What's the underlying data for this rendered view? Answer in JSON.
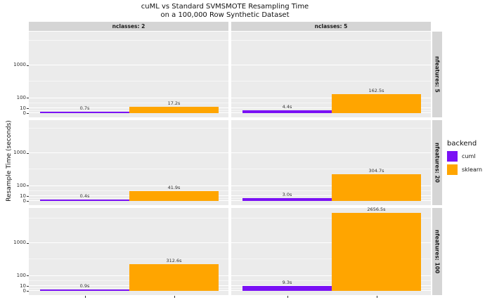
{
  "title": {
    "line1": "cuML vs Standard SVMSMOTE Resampling Time",
    "line2": "on a 100,000 Row Synthetic Dataset"
  },
  "axes": {
    "ylabel": "Resample Time (seconds)",
    "y_tick_labels": [
      "0",
      "10",
      "100",
      "1000"
    ]
  },
  "facets": {
    "col_labels": [
      "nclasses: 2",
      "nclasses: 5"
    ],
    "row_labels": [
      "nfeatures: 5",
      "nfeatures: 20",
      "nfeatures: 100"
    ]
  },
  "legend": {
    "title": "backend",
    "items": [
      {
        "label": "cuml",
        "color": "#7a11f5"
      },
      {
        "label": "sklearn",
        "color": "#ffa500"
      }
    ]
  },
  "colors": {
    "panel_bg": "#ebebeb",
    "strip_bg": "#d5d5d5",
    "grid_major": "#ffffff",
    "cuml": "#7a11f5",
    "sklearn": "#ffa500"
  },
  "chart_data": {
    "type": "bar",
    "title": "cuML vs Standard SVMSMOTE Resampling Time on a 100,000 Row Synthetic Dataset",
    "ylabel": "Resample Time (seconds)",
    "x": "backend",
    "categories": [
      "cuml",
      "sklearn"
    ],
    "y_scale": "sqrt",
    "ylim": [
      0,
      2900
    ],
    "y_major_breaks": [
      0,
      10,
      100,
      1000
    ],
    "y_minor_breaks": [
      2.5,
      43,
      433,
      2300
    ],
    "facet_grid": {
      "rows_var": "nfeatures",
      "rows": [
        5,
        20,
        100
      ],
      "cols_var": "nclasses",
      "cols": [
        2,
        5
      ]
    },
    "legend_position": "right",
    "panels": [
      {
        "nclasses": 2,
        "nfeatures": 5,
        "values": {
          "cuml": 0.7,
          "sklearn": 17.2
        },
        "labels": {
          "cuml": "0.7s",
          "sklearn": "17.2s"
        }
      },
      {
        "nclasses": 5,
        "nfeatures": 5,
        "values": {
          "cuml": 4.4,
          "sklearn": 162.5
        },
        "labels": {
          "cuml": "4.4s",
          "sklearn": "162.5s"
        }
      },
      {
        "nclasses": 2,
        "nfeatures": 20,
        "values": {
          "cuml": 0.4,
          "sklearn": 41.9
        },
        "labels": {
          "cuml": "0.4s",
          "sklearn": "41.9s"
        }
      },
      {
        "nclasses": 5,
        "nfeatures": 20,
        "values": {
          "cuml": 3.0,
          "sklearn": 304.7
        },
        "labels": {
          "cuml": "3.0s",
          "sklearn": "304.7s"
        }
      },
      {
        "nclasses": 2,
        "nfeatures": 100,
        "values": {
          "cuml": 0.9,
          "sklearn": 312.6
        },
        "labels": {
          "cuml": "0.9s",
          "sklearn": "312.6s"
        }
      },
      {
        "nclasses": 5,
        "nfeatures": 100,
        "values": {
          "cuml": 9.3,
          "sklearn": 2656.5
        },
        "labels": {
          "cuml": "9.3s",
          "sklearn": "2656.5s"
        }
      }
    ]
  }
}
